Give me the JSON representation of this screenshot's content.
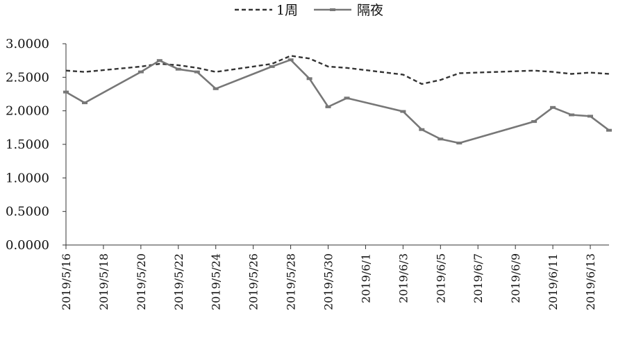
{
  "chart_data": {
    "type": "line",
    "title": "",
    "xlabel": "",
    "ylabel": "",
    "ylim": [
      0,
      3
    ],
    "y_ticks": [
      "0.0000",
      "0.5000",
      "1.0000",
      "1.5000",
      "2.0000",
      "2.5000",
      "3.0000"
    ],
    "x_ticks": [
      "2019/5/16",
      "2019/5/18",
      "2019/5/20",
      "2019/5/22",
      "2019/5/24",
      "2019/5/26",
      "2019/5/28",
      "2019/5/30",
      "2019/6/1",
      "2019/6/3",
      "2019/6/5",
      "2019/6/7",
      "2019/6/9",
      "2019/6/11",
      "2019/6/13"
    ],
    "x_range": [
      "2019-05-16",
      "2019-06-14"
    ],
    "legend_position": "top-center",
    "grid": false,
    "series": [
      {
        "name": "1周",
        "color": "#333333",
        "style": "dashed",
        "points": [
          [
            "2019-05-16",
            2.6
          ],
          [
            "2019-05-17",
            2.58
          ],
          [
            "2019-05-20",
            2.66
          ],
          [
            "2019-05-21",
            2.7
          ],
          [
            "2019-05-22",
            2.68
          ],
          [
            "2019-05-23",
            2.64
          ],
          [
            "2019-05-24",
            2.58
          ],
          [
            "2019-05-27",
            2.7
          ],
          [
            "2019-05-28",
            2.82
          ],
          [
            "2019-05-29",
            2.78
          ],
          [
            "2019-05-30",
            2.66
          ],
          [
            "2019-05-31",
            2.64
          ],
          [
            "2019-06-03",
            2.54
          ],
          [
            "2019-06-04",
            2.4
          ],
          [
            "2019-06-05",
            2.46
          ],
          [
            "2019-06-06",
            2.56
          ],
          [
            "2019-06-10",
            2.6
          ],
          [
            "2019-06-11",
            2.58
          ],
          [
            "2019-06-12",
            2.55
          ],
          [
            "2019-06-13",
            2.57
          ],
          [
            "2019-06-14",
            2.55
          ]
        ]
      },
      {
        "name": "隔夜",
        "color": "#777777",
        "style": "solid",
        "points": [
          [
            "2019-05-16",
            2.28
          ],
          [
            "2019-05-17",
            2.12
          ],
          [
            "2019-05-20",
            2.58
          ],
          [
            "2019-05-21",
            2.75
          ],
          [
            "2019-05-22",
            2.62
          ],
          [
            "2019-05-23",
            2.58
          ],
          [
            "2019-05-24",
            2.33
          ],
          [
            "2019-05-27",
            2.66
          ],
          [
            "2019-05-28",
            2.76
          ],
          [
            "2019-05-29",
            2.48
          ],
          [
            "2019-05-30",
            2.06
          ],
          [
            "2019-05-31",
            2.19
          ],
          [
            "2019-06-03",
            1.99
          ],
          [
            "2019-06-04",
            1.72
          ],
          [
            "2019-06-05",
            1.58
          ],
          [
            "2019-06-06",
            1.52
          ],
          [
            "2019-06-10",
            1.84
          ],
          [
            "2019-06-11",
            2.05
          ],
          [
            "2019-06-12",
            1.94
          ],
          [
            "2019-06-13",
            1.92
          ],
          [
            "2019-06-14",
            1.71
          ]
        ]
      }
    ]
  }
}
